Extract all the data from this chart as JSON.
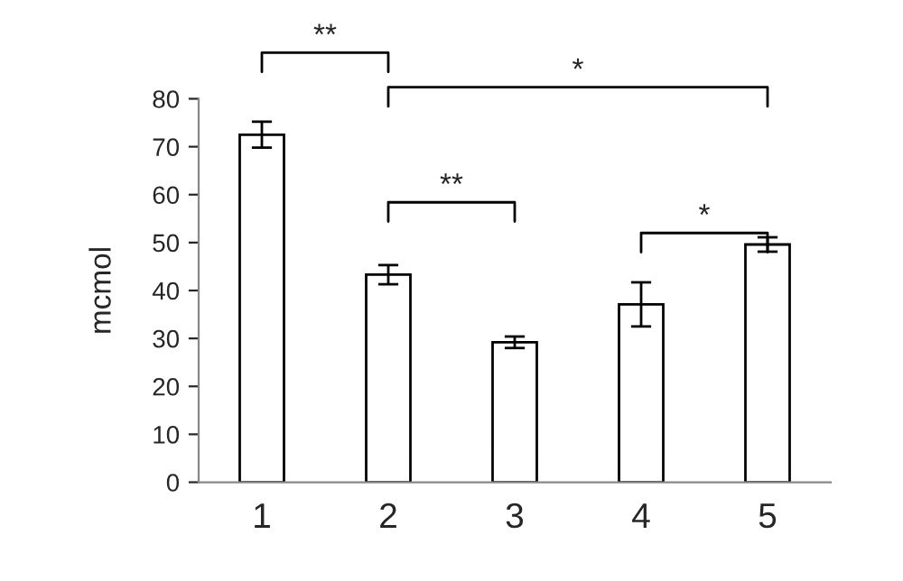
{
  "chart_data": {
    "type": "bar",
    "ylabel": "mcmol",
    "categories": [
      "1",
      "2",
      "3",
      "4",
      "5"
    ],
    "values": [
      72.5,
      43.3,
      29.2,
      37.1,
      49.6
    ],
    "errors": [
      2.7,
      2.0,
      1.2,
      4.6,
      1.5
    ],
    "color": "#ffffff",
    "ylim": [
      0,
      80
    ],
    "yticks": [
      0,
      10,
      20,
      30,
      40,
      50,
      60,
      70,
      80
    ],
    "grid": false,
    "legend": false,
    "annotations": [
      "**",
      "*",
      "**",
      "*"
    ]
  }
}
